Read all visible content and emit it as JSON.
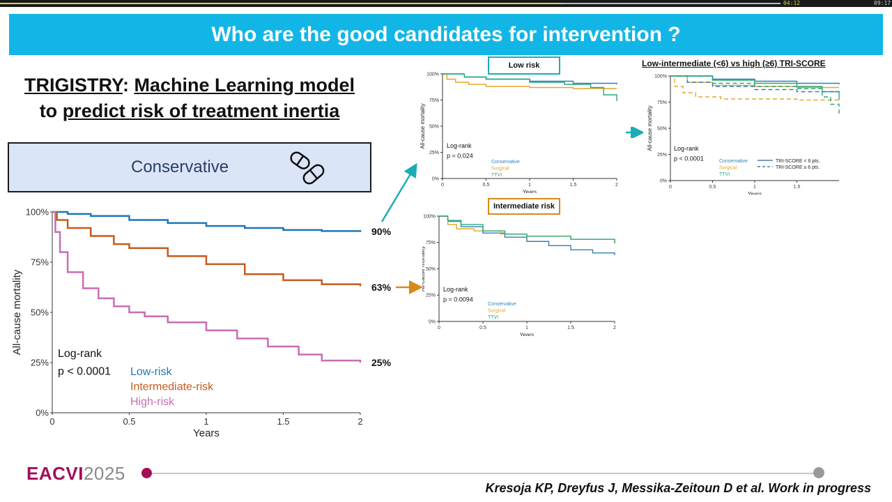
{
  "player": {
    "time_current": "04:12",
    "time_total": "09:17"
  },
  "slide": {
    "title": "Who are the good candidates for intervention ?",
    "subtitle": {
      "part1": "TRIGISTRY",
      "part2": ": ",
      "part3": "Machine Learning model",
      "part4": "to ",
      "part5": "predict risk of treatment inertia"
    },
    "conservative_label": "Conservative",
    "pill_icon": "pills-icon",
    "footer": {
      "logo_brand": "EACVI",
      "logo_year": "2025",
      "citation": "Kresoja KP, Dreyfus J, Messika-Zeitoun D et al. Work in progress"
    },
    "colors": {
      "banner": "#12b6e6",
      "low": "#1f77b4",
      "intermediate": "#c65a1c",
      "high": "#c86db4",
      "conservative": "#2f7fb8",
      "surgical": "#e0a72a",
      "ttvi": "#2aa87a",
      "brand": "#a50d57"
    }
  },
  "chart_data": [
    {
      "type": "line",
      "ylabel": "All-cause mortality",
      "xlabel": "Years",
      "x_ticks": [
        "0",
        "0.5",
        "1",
        "1.5",
        "2"
      ],
      "y_ticks": [
        "0%",
        "25%",
        "50%",
        "75%",
        "100%"
      ],
      "xlim": [
        0,
        2
      ],
      "ylim": [
        0,
        100
      ],
      "annotation_1": "Log-rank",
      "annotation_2": "p < 0.0001",
      "series": [
        {
          "name": "Low-risk",
          "end_label": "90%",
          "x": [
            0,
            0.1,
            0.25,
            0.5,
            0.75,
            1,
            1.25,
            1.5,
            1.75,
            2
          ],
          "y": [
            100,
            99,
            98,
            96,
            94.5,
            93,
            92,
            91,
            90.5,
            90
          ]
        },
        {
          "name": "Intermediate-risk",
          "end_label": "63%",
          "x": [
            0,
            0.03,
            0.1,
            0.25,
            0.4,
            0.5,
            0.75,
            1,
            1.25,
            1.5,
            1.75,
            2
          ],
          "y": [
            100,
            96,
            92,
            88,
            84,
            82,
            78,
            74,
            69,
            66,
            64,
            63
          ]
        },
        {
          "name": "High-risk",
          "end_label": "25%",
          "x": [
            0,
            0.02,
            0.05,
            0.1,
            0.2,
            0.3,
            0.4,
            0.5,
            0.6,
            0.75,
            1,
            1.2,
            1.4,
            1.6,
            1.75,
            2
          ],
          "y": [
            100,
            90,
            80,
            70,
            62,
            57,
            53,
            50,
            48,
            45,
            41,
            37,
            33,
            29,
            26,
            25
          ]
        }
      ]
    },
    {
      "type": "line",
      "title": "Low risk",
      "ylabel": "All-cause mortality",
      "xlabel": "Years",
      "x_ticks": [
        "0",
        "0.5",
        "1",
        "1.5",
        "2"
      ],
      "y_ticks": [
        "0%",
        "25%",
        "50%",
        "75%",
        "100%"
      ],
      "xlim": [
        0,
        2
      ],
      "ylim": [
        0,
        100
      ],
      "annotation_1": "Log-rank",
      "annotation_2": "p = 0.024",
      "series": [
        {
          "name": "Conservative",
          "x": [
            0,
            0.25,
            0.5,
            1,
            1.5,
            2
          ],
          "y": [
            100,
            97,
            95,
            93,
            91,
            90
          ]
        },
        {
          "name": "Surgical",
          "x": [
            0,
            0.05,
            0.15,
            0.3,
            0.5,
            1,
            1.5,
            2
          ],
          "y": [
            100,
            95,
            92,
            90,
            88,
            87,
            86,
            86
          ]
        },
        {
          "name": "TTVI",
          "x": [
            0,
            0.25,
            0.5,
            1,
            1.4,
            1.7,
            1.85,
            2
          ],
          "y": [
            100,
            97,
            95,
            92,
            90,
            87,
            80,
            74
          ]
        }
      ]
    },
    {
      "type": "line",
      "title": "Intermediate risk",
      "ylabel": "All-cause mortality",
      "xlabel": "Years",
      "x_ticks": [
        "0",
        "0.5",
        "1",
        "1.5",
        "2"
      ],
      "y_ticks": [
        "0%",
        "25%",
        "50%",
        "75%",
        "100%"
      ],
      "xlim": [
        0,
        2
      ],
      "ylim": [
        0,
        100
      ],
      "annotation_1": "Log-rank",
      "annotation_2": "p = 0.0094",
      "series": [
        {
          "name": "Conservative",
          "x": [
            0,
            0.1,
            0.25,
            0.5,
            0.75,
            1,
            1.25,
            1.5,
            1.75,
            2
          ],
          "y": [
            100,
            95,
            90,
            84,
            80,
            76,
            72,
            68,
            65,
            63
          ]
        },
        {
          "name": "Surgical",
          "x": [
            0,
            0.1,
            0.2,
            0.4,
            0.7,
            1,
            1.5,
            2
          ],
          "y": [
            100,
            92,
            88,
            86,
            83,
            81,
            78,
            75
          ]
        },
        {
          "name": "TTVI",
          "x": [
            0,
            0.1,
            0.25,
            0.5,
            0.75,
            1,
            1.5,
            2
          ],
          "y": [
            100,
            96,
            92,
            86,
            83,
            81,
            78,
            74
          ]
        }
      ]
    },
    {
      "type": "line",
      "title": "Low-intermediate (<6) vs high (≥6) TRI-SCORE",
      "ylabel": "All-cause mortality",
      "xlabel": "Years",
      "x_ticks": [
        "0",
        "0.5",
        "1",
        "1.5"
      ],
      "y_ticks": [
        "0%",
        "25%",
        "50%",
        "75%",
        "100%"
      ],
      "xlim": [
        0,
        2
      ],
      "ylim": [
        0,
        100
      ],
      "annotation_1": "Log-rank",
      "annotation_2": "p < 0.0001",
      "legend_groups": [
        "Conservative",
        "Surgical",
        "TTVI"
      ],
      "legend_styles": [
        "TRI-SCORE < 6 pts.",
        "TRI-SCORE ≥ 6 pts."
      ],
      "series": [
        {
          "group": "Conservative",
          "style": "solid",
          "x": [
            0,
            0.5,
            1,
            1.5,
            2
          ],
          "y": [
            100,
            97,
            95,
            93,
            92
          ]
        },
        {
          "group": "Surgical",
          "style": "solid",
          "x": [
            0,
            0.2,
            0.5,
            1,
            1.5,
            2
          ],
          "y": [
            100,
            94,
            91,
            90,
            89,
            89
          ]
        },
        {
          "group": "TTVI",
          "style": "solid",
          "x": [
            0,
            0.5,
            1,
            1.5,
            1.8,
            2
          ],
          "y": [
            100,
            96,
            93,
            90,
            85,
            77
          ]
        },
        {
          "group": "Conservative",
          "style": "dashed",
          "x": [
            0,
            0.2,
            0.5,
            1,
            1.5,
            2
          ],
          "y": [
            100,
            94,
            90,
            87,
            85,
            83
          ]
        },
        {
          "group": "Surgical",
          "style": "dashed",
          "x": [
            0,
            0.05,
            0.15,
            0.3,
            0.6,
            1,
            1.5,
            2
          ],
          "y": [
            100,
            90,
            84,
            80,
            78,
            78,
            77,
            76
          ]
        },
        {
          "group": "TTVI",
          "style": "dashed",
          "x": [
            0,
            0.5,
            1,
            1.5,
            1.8,
            1.9,
            2
          ],
          "y": [
            100,
            93,
            90,
            88,
            80,
            73,
            64
          ]
        }
      ]
    }
  ]
}
